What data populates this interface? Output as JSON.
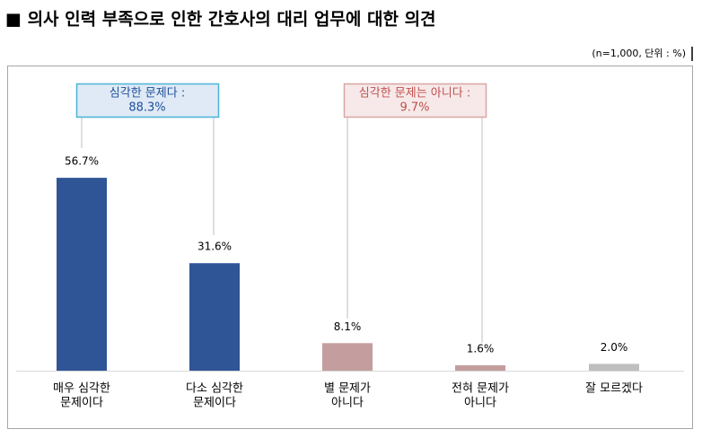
{
  "chart_data": {
    "type": "bar",
    "title": "■ 의사 인력 부족으로 인한 간호사의 대리 업무에 대한 의견",
    "subtitle": "(n=1,000, 단위 : %)",
    "categories": [
      [
        "매우 심각한",
        "문제이다"
      ],
      [
        "다소 심각한",
        "문제이다"
      ],
      [
        "별 문제가",
        "아니다"
      ],
      [
        "전혀 문제가",
        "아니다"
      ],
      [
        "잘 모르겠다"
      ]
    ],
    "values": [
      56.7,
      31.6,
      8.1,
      1.6,
      2.0
    ],
    "value_labels": [
      "56.7%",
      "31.6%",
      "8.1%",
      "1.6%",
      "2.0%"
    ],
    "colors": [
      "#2f5597",
      "#2f5597",
      "#c49e9e",
      "#c49e9e",
      "#bfbfbf"
    ],
    "annotations": [
      {
        "lines": [
          "심각한 문제다 :",
          "88.3%"
        ],
        "color": "#1f4e9a",
        "fill": "#dfeaf6",
        "border": "#4bb3d8"
      },
      {
        "lines": [
          "심각한 문제는 아니다 :",
          "9.7%"
        ],
        "color": "#c0504d",
        "fill": "#f7e9e9",
        "border": "#d9a5a5"
      }
    ]
  }
}
